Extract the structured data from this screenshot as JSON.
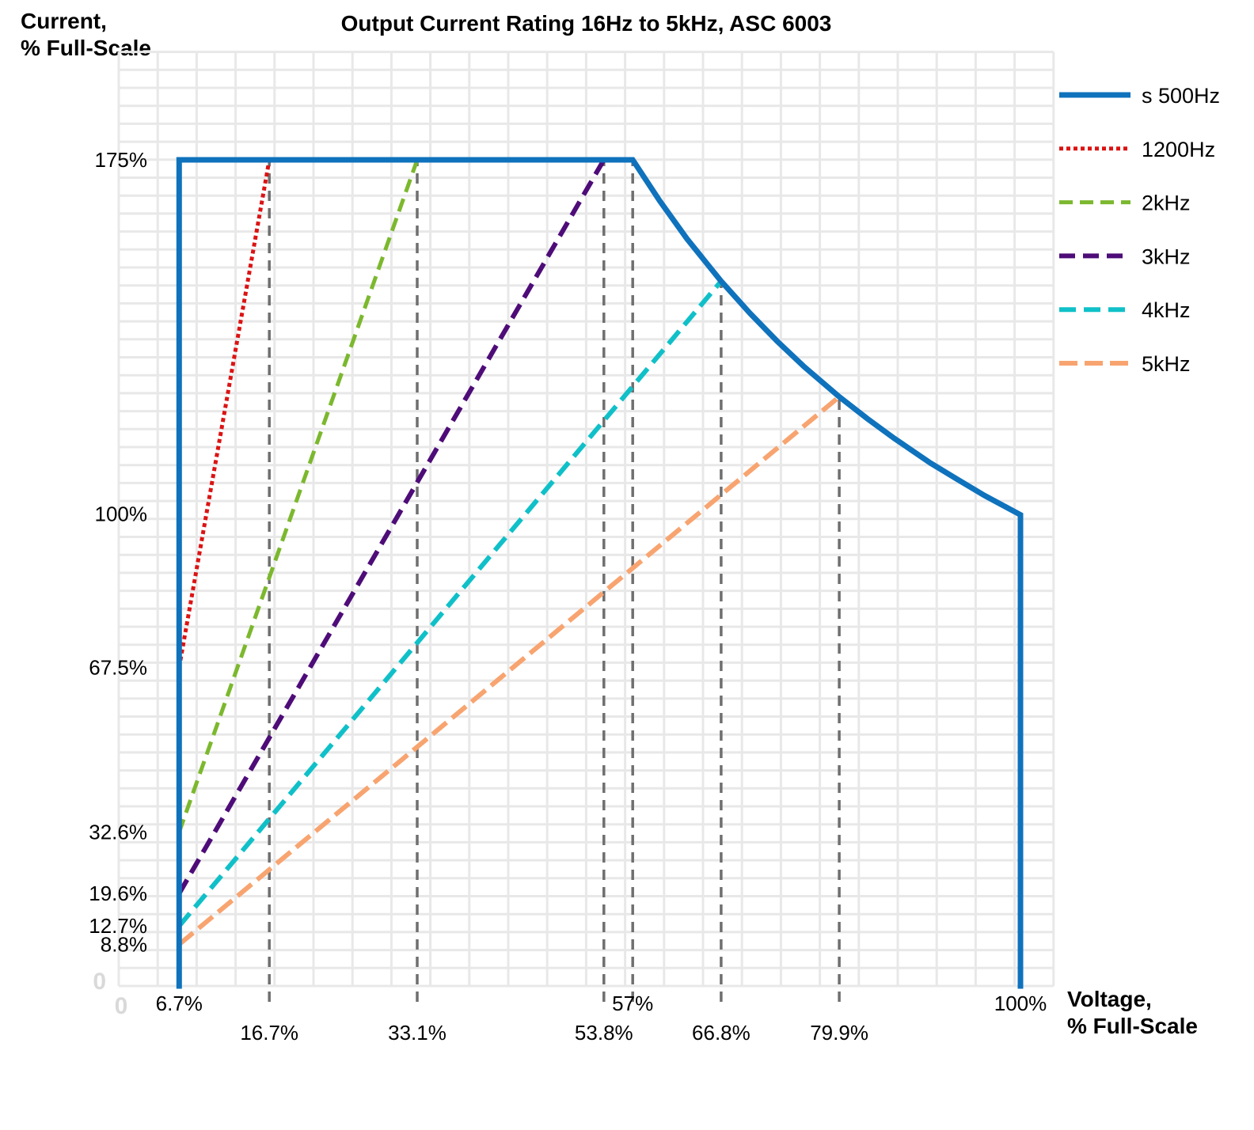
{
  "chart": {
    "title": "Output Current Rating 16Hz to 5kHz, ASC 6003",
    "y_axis_title": "Current,\n% Full-Scale",
    "x_axis_title": "Voltage,\n% Full-Scale"
  },
  "chart_data": {
    "type": "line",
    "title": "Output Current Rating 16Hz to 5kHz, ASC 6003",
    "xlabel": "Voltage, % Full-Scale",
    "ylabel": "Current, % Full-Scale",
    "xlim": [
      0,
      104
    ],
    "ylim": [
      0,
      199
    ],
    "grid": true,
    "grid_color": "#E8E8E8",
    "legend_position": "right",
    "y_ticks": [
      {
        "v": 175,
        "label": "175%"
      },
      {
        "v": 100,
        "label": "100%"
      },
      {
        "v": 67.5,
        "label": "67.5%"
      },
      {
        "v": 32.6,
        "label": "32.6%"
      },
      {
        "v": 19.6,
        "label": "19.6%"
      },
      {
        "v": 12.7,
        "label": "12.7%"
      },
      {
        "v": 8.8,
        "label": "8.8%"
      },
      {
        "v": 0,
        "label": "0",
        "muted": true
      }
    ],
    "x_ticks_row1": [
      {
        "v": 0,
        "label": "0",
        "muted": true
      },
      {
        "v": 6.7,
        "label": "6.7%"
      },
      {
        "v": 57,
        "label": "57%"
      },
      {
        "v": 100,
        "label": "100%"
      }
    ],
    "x_ticks_row2": [
      {
        "v": 16.7,
        "label": "16.7%"
      },
      {
        "v": 33.1,
        "label": "33.1%"
      },
      {
        "v": 53.8,
        "label": "53.8%"
      },
      {
        "v": 66.8,
        "label": "66.8%"
      },
      {
        "v": 79.9,
        "label": "79.9%"
      }
    ],
    "series": [
      {
        "id": "5khz",
        "name": "5kHz",
        "color": "#F8A470",
        "width": 6,
        "dash": "23 9",
        "points": [
          [
            6.7,
            8.8
          ],
          [
            79.9,
            124.8
          ]
        ]
      },
      {
        "id": "4khz",
        "name": "4kHz",
        "color": "#10C0C8",
        "width": 6,
        "dash": "21 10",
        "points": [
          [
            6.7,
            12.7
          ],
          [
            66.8,
            149.3
          ]
        ]
      },
      {
        "id": "3khz",
        "name": "3kHz",
        "color": "#4E0C78",
        "width": 6,
        "dash": "20 10",
        "points": [
          [
            6.7,
            19.6
          ],
          [
            53.8,
            175
          ]
        ]
      },
      {
        "id": "2khz",
        "name": "2kHz",
        "color": "#7CB82E",
        "width": 5,
        "dash": "17 9",
        "points": [
          [
            6.7,
            32.6
          ],
          [
            33.1,
            175
          ]
        ]
      },
      {
        "id": "1200hz",
        "name": "1200Hz",
        "color": "#DC1313",
        "width": 5,
        "dash": "5 4",
        "points": [
          [
            6.7,
            67.5
          ],
          [
            16.7,
            175
          ]
        ]
      },
      {
        "id": "le500hz",
        "name": "s 500Hz",
        "color": "#0F72BC",
        "width": 7,
        "dash": null,
        "points": [
          [
            6.7,
            0
          ],
          [
            6.7,
            175
          ],
          [
            57,
            175
          ],
          [
            60,
            166.3
          ],
          [
            63,
            158.3
          ],
          [
            66.8,
            149.3
          ],
          [
            70,
            142.5
          ],
          [
            73,
            136.6
          ],
          [
            76,
            131.2
          ],
          [
            79.9,
            124.8
          ],
          [
            83,
            120.2
          ],
          [
            86,
            116.0
          ],
          [
            90,
            110.8
          ],
          [
            93,
            107.3
          ],
          [
            96,
            103.9
          ],
          [
            100,
            99.8
          ],
          [
            100,
            0
          ]
        ]
      }
    ],
    "legend_order": [
      "le500hz",
      "1200hz",
      "2khz",
      "3khz",
      "4khz",
      "5khz"
    ],
    "guides": {
      "color": "#6F6F6F",
      "dash": "13 9",
      "width": 3.5,
      "lines": [
        {
          "x": 16.7,
          "top": 175
        },
        {
          "x": 33.1,
          "top": 175
        },
        {
          "x": 53.8,
          "top": 175
        },
        {
          "x": 57,
          "top": 175
        },
        {
          "x": 66.8,
          "top": 149.3
        },
        {
          "x": 79.9,
          "top": 124.8
        }
      ]
    }
  }
}
